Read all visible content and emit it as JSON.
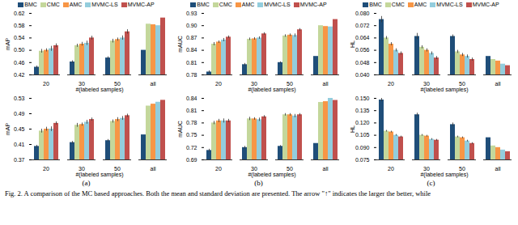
{
  "chart_data": [
    {
      "type": "bar",
      "categories": [
        "20",
        "30",
        "50",
        "all"
      ],
      "x_label": "#(labeled samples)",
      "y_label": "mAP",
      "ylim": [
        0.42,
        0.62
      ],
      "yticks": [
        0.42,
        0.46,
        {
          "value": 0.5,
          "label": "0.50"
        },
        0.54,
        0.58,
        0.62
      ],
      "legend": "top",
      "series": [
        {
          "name": "BMC",
          "color": "#1f4e79",
          "values": [
            0.445,
            0.462,
            0.475,
            0.5
          ],
          "errors": [
            0.004,
            0.004,
            0.004,
            0
          ]
        },
        {
          "name": "CMC",
          "color": "#c4d79b",
          "values": [
            0.497,
            0.515,
            0.53,
            0.585
          ],
          "errors": [
            0.006,
            0.005,
            0.006,
            0
          ]
        },
        {
          "name": "AMC",
          "color": "#f79646",
          "values": [
            0.5,
            0.52,
            0.535,
            0.583
          ],
          "errors": [
            0.005,
            0.006,
            0.005,
            0
          ]
        },
        {
          "name": "MVMC-LS",
          "color": "#93cddd",
          "values": [
            0.505,
            0.523,
            0.54,
            0.58
          ],
          "errors": [
            0.008,
            0.007,
            0.007,
            0
          ]
        },
        {
          "name": "MVMC-AP",
          "color": "#c0504d",
          "values": [
            0.515,
            0.54,
            0.56,
            0.605
          ],
          "errors": [
            0.006,
            0.006,
            0.007,
            0
          ]
        }
      ]
    },
    {
      "type": "bar",
      "categories": [
        "20",
        "30",
        "50",
        "all"
      ],
      "x_label": "#(labeled samples)",
      "y_label": "mAUC",
      "ylim": [
        0.78,
        0.93
      ],
      "yticks": [
        0.78,
        0.81,
        0.84,
        0.87,
        {
          "value": 0.9,
          "label": "0.90"
        },
        0.93
      ],
      "legend": "top",
      "series": [
        {
          "name": "BMC",
          "color": "#1f4e79",
          "values": [
            0.787,
            0.805,
            0.81,
            0.825
          ],
          "errors": [
            0.003,
            0.003,
            0.002,
            0
          ]
        },
        {
          "name": "CMC",
          "color": "#c4d79b",
          "values": [
            0.855,
            0.867,
            0.875,
            0.9
          ],
          "errors": [
            0.004,
            0.003,
            0.003,
            0
          ]
        },
        {
          "name": "AMC",
          "color": "#f79646",
          "values": [
            0.86,
            0.868,
            0.877,
            0.898
          ],
          "errors": [
            0.003,
            0.003,
            0.003,
            0
          ]
        },
        {
          "name": "MVMC-LS",
          "color": "#93cddd",
          "values": [
            0.865,
            0.87,
            0.876,
            0.897
          ],
          "errors": [
            0.004,
            0.003,
            0.004,
            0
          ]
        },
        {
          "name": "MVMC-AP",
          "color": "#c0504d",
          "values": [
            0.872,
            0.88,
            0.89,
            0.915
          ],
          "errors": [
            0.003,
            0.003,
            0.003,
            0
          ]
        }
      ]
    },
    {
      "type": "bar",
      "categories": [
        "20",
        "30",
        "50",
        "all"
      ],
      "x_label": "#(labeled samples)",
      "y_label": "HL",
      "ylim": [
        0.04,
        0.08
      ],
      "yticks": [
        {
          "value": 0.04,
          "label": "0.040"
        },
        0.048,
        0.056,
        0.064,
        0.072,
        {
          "value": 0.08,
          "label": "0.080"
        }
      ],
      "legend": "top",
      "series": [
        {
          "name": "BMC",
          "color": "#1f4e79",
          "values": [
            0.076,
            0.065,
            0.065,
            0.052
          ],
          "errors": [
            0.002,
            0.002,
            0.001,
            0
          ]
        },
        {
          "name": "CMC",
          "color": "#c4d79b",
          "values": [
            0.064,
            0.058,
            0.055,
            0.05
          ],
          "errors": [
            0.001,
            0.001,
            0.001,
            0
          ]
        },
        {
          "name": "AMC",
          "color": "#f79646",
          "values": [
            0.06,
            0.056,
            0.053,
            0.049
          ],
          "errors": [
            0.001,
            0.001,
            0.001,
            0
          ]
        },
        {
          "name": "MVMC-LS",
          "color": "#93cddd",
          "values": [
            0.056,
            0.054,
            0.052,
            0.047
          ],
          "errors": [
            0.001,
            0.001,
            0.001,
            0
          ]
        },
        {
          "name": "MVMC-AP",
          "color": "#c0504d",
          "values": [
            0.054,
            0.051,
            0.05,
            0.046
          ],
          "errors": [
            0.001,
            0.001,
            0.001,
            0
          ]
        }
      ]
    },
    {
      "type": "bar",
      "categories": [
        "20",
        "30",
        "50",
        "all"
      ],
      "x_label": "#(labeled samples)",
      "y_label": "mAP",
      "ylim": [
        0.37,
        0.53
      ],
      "yticks": [
        0.37,
        0.41,
        0.45,
        0.49,
        0.53
      ],
      "series": [
        {
          "name": "BMC",
          "color": "#1f4e79",
          "values": [
            0.405,
            0.415,
            0.42,
            0.435
          ],
          "errors": [
            0.003,
            0.003,
            0.003,
            0
          ]
        },
        {
          "name": "CMC",
          "color": "#c4d79b",
          "values": [
            0.445,
            0.46,
            0.47,
            0.51
          ],
          "errors": [
            0.005,
            0.005,
            0.004,
            0
          ]
        },
        {
          "name": "AMC",
          "color": "#f79646",
          "values": [
            0.45,
            0.462,
            0.475,
            0.515
          ],
          "errors": [
            0.005,
            0.004,
            0.005,
            0
          ]
        },
        {
          "name": "MVMC-LS",
          "color": "#93cddd",
          "values": [
            0.45,
            0.468,
            0.478,
            0.52
          ],
          "errors": [
            0.006,
            0.005,
            0.005,
            0
          ]
        },
        {
          "name": "MVMC-AP",
          "color": "#c0504d",
          "values": [
            0.465,
            0.475,
            0.485,
            0.525
          ],
          "errors": [
            0.004,
            0.004,
            0.004,
            0
          ]
        }
      ]
    },
    {
      "type": "bar",
      "categories": [
        "20",
        "30",
        "50",
        "all"
      ],
      "x_label": "#(labeled samples)",
      "y_label": "mAUC",
      "ylim": [
        0.69,
        0.84
      ],
      "yticks": [
        0.69,
        0.72,
        0.75,
        0.78,
        0.81,
        0.84
      ],
      "series": [
        {
          "name": "BMC",
          "color": "#1f4e79",
          "values": [
            0.713,
            0.72,
            0.723,
            0.73
          ],
          "errors": [
            0.003,
            0.003,
            0.002,
            0
          ]
        },
        {
          "name": "CMC",
          "color": "#c4d79b",
          "values": [
            0.78,
            0.79,
            0.8,
            0.83
          ],
          "errors": [
            0.004,
            0.004,
            0.003,
            0
          ]
        },
        {
          "name": "AMC",
          "color": "#f79646",
          "values": [
            0.785,
            0.79,
            0.8,
            0.832
          ],
          "errors": [
            0.004,
            0.003,
            0.003,
            0
          ]
        },
        {
          "name": "MVMC-LS",
          "color": "#93cddd",
          "values": [
            0.785,
            0.788,
            0.797,
            0.84
          ],
          "errors": [
            0.005,
            0.004,
            0.004,
            0
          ]
        },
        {
          "name": "MVMC-AP",
          "color": "#c0504d",
          "values": [
            0.785,
            0.795,
            0.8,
            0.835
          ],
          "errors": [
            0.004,
            0.003,
            0.003,
            0
          ]
        }
      ]
    },
    {
      "type": "bar",
      "categories": [
        "20",
        "30",
        "50",
        "all"
      ],
      "x_label": "#(labeled samples)",
      "y_label": "HL",
      "ylim": [
        0.075,
        0.15
      ],
      "yticks": [
        0.075,
        {
          "value": 0.09,
          "label": "0.090"
        },
        0.105,
        {
          "value": 0.12,
          "label": "0.120"
        },
        0.135,
        {
          "value": 0.15,
          "label": "0.150"
        }
      ],
      "series": [
        {
          "name": "BMC",
          "color": "#1f4e79",
          "values": [
            0.148,
            0.13,
            0.118,
            0.102
          ],
          "errors": [
            0.002,
            0.002,
            0.002,
            0
          ]
        },
        {
          "name": "CMC",
          "color": "#c4d79b",
          "values": [
            0.11,
            0.105,
            0.103,
            0.092
          ],
          "errors": [
            0.001,
            0.001,
            0.001,
            0
          ]
        },
        {
          "name": "AMC",
          "color": "#f79646",
          "values": [
            0.109,
            0.104,
            0.102,
            0.09
          ],
          "errors": [
            0.001,
            0.001,
            0.001,
            0
          ]
        },
        {
          "name": "MVMC-LS",
          "color": "#93cddd",
          "values": [
            0.105,
            0.1,
            0.098,
            0.087
          ],
          "errors": [
            0.001,
            0.001,
            0.001,
            0
          ]
        },
        {
          "name": "MVMC-AP",
          "color": "#c0504d",
          "values": [
            0.103,
            0.099,
            0.095,
            0.085
          ],
          "errors": [
            0.001,
            0.001,
            0.001,
            0
          ]
        }
      ]
    }
  ],
  "panel_labels": [
    "(a)",
    "(b)",
    "(c)"
  ],
  "caption": "Fig. 2.   A comparison of the MC based approaches. Both the mean and standard deviation are presented. The arrow \"↑\" indicates the larger the better, while"
}
